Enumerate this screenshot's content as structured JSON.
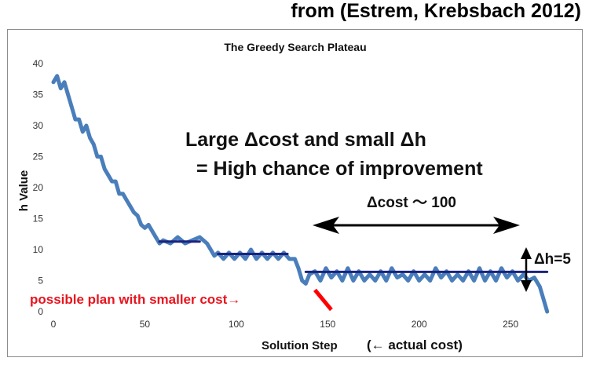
{
  "header": {
    "source_note": "from (Estrem, Krebsbach 2012)"
  },
  "chart_data": {
    "type": "line",
    "title": "The Greedy Search Plateau",
    "xlabel": "Solution Step",
    "xlabel_suffix": "(← actual cost)",
    "ylabel": "h Value",
    "xlim": [
      0,
      280
    ],
    "ylim": [
      0,
      40
    ],
    "xticks": [
      0,
      50,
      100,
      150,
      200,
      250
    ],
    "yticks": [
      0,
      5,
      10,
      15,
      20,
      25,
      30,
      35,
      40
    ],
    "grid": false,
    "series": [
      {
        "color": "#4a7ebb",
        "x": [
          0,
          2,
          4,
          6,
          8,
          10,
          12,
          14,
          16,
          18,
          20,
          22,
          24,
          26,
          28,
          30,
          32,
          34,
          36,
          38,
          40,
          42,
          44,
          46,
          48,
          50,
          52,
          54,
          56,
          58,
          60,
          64,
          68,
          72,
          76,
          80,
          84,
          86,
          88,
          90,
          93,
          96,
          99,
          102,
          105,
          108,
          111,
          114,
          117,
          120,
          123,
          126,
          129,
          132,
          134,
          136,
          138,
          140,
          143,
          146,
          149,
          152,
          155,
          158,
          161,
          164,
          167,
          170,
          173,
          176,
          179,
          182,
          185,
          188,
          191,
          194,
          197,
          200,
          203,
          206,
          209,
          212,
          215,
          218,
          221,
          224,
          227,
          230,
          233,
          236,
          239,
          242,
          245,
          248,
          251,
          254,
          257,
          260,
          263,
          266,
          268,
          270
        ],
        "values": [
          37,
          38,
          36,
          37,
          35,
          33,
          31,
          31,
          29,
          30,
          28,
          27,
          25,
          25,
          23,
          22,
          21,
          21,
          19,
          19,
          18,
          17,
          16,
          15.5,
          14,
          13.5,
          14,
          13,
          12,
          11,
          11.5,
          11,
          12,
          11,
          11.5,
          12,
          11,
          10,
          9,
          9.5,
          8.5,
          9.5,
          8.5,
          9.5,
          8.5,
          10,
          8.5,
          9.5,
          8.5,
          9.5,
          8.5,
          9.5,
          8.5,
          8.5,
          7,
          5,
          4.5,
          6,
          6.5,
          5,
          7,
          5.5,
          6.5,
          5,
          7,
          5,
          6.5,
          5,
          6,
          5,
          6.5,
          5,
          7,
          5.5,
          6,
          5,
          6.5,
          5,
          6,
          5,
          7,
          5.5,
          6.5,
          5,
          6,
          5,
          6.5,
          5,
          7,
          5,
          6.5,
          5,
          7,
          5.5,
          6.5,
          5,
          6,
          5,
          5.5,
          4,
          2,
          0
        ]
      },
      {
        "color": "#1a237e",
        "x": [
          58,
          80
        ],
        "values": [
          11.3,
          11.3
        ]
      },
      {
        "color": "#1a237e",
        "x": [
          90,
          128
        ],
        "values": [
          9.3,
          9.3
        ]
      },
      {
        "color": "#1a237e",
        "x": [
          138,
          270
        ],
        "values": [
          6.4,
          6.4
        ]
      },
      {
        "color": "#ff0000",
        "x": [
          143,
          152
        ],
        "values": [
          3.5,
          0.3
        ]
      }
    ],
    "annotations": {
      "line1": "Large Δcost and small Δh",
      "line2": "= High chance of improvement",
      "dcost": "Δcost ～ 100",
      "dh": "Δh=5",
      "possible_plan": "possible plan with smaller cost→"
    }
  }
}
